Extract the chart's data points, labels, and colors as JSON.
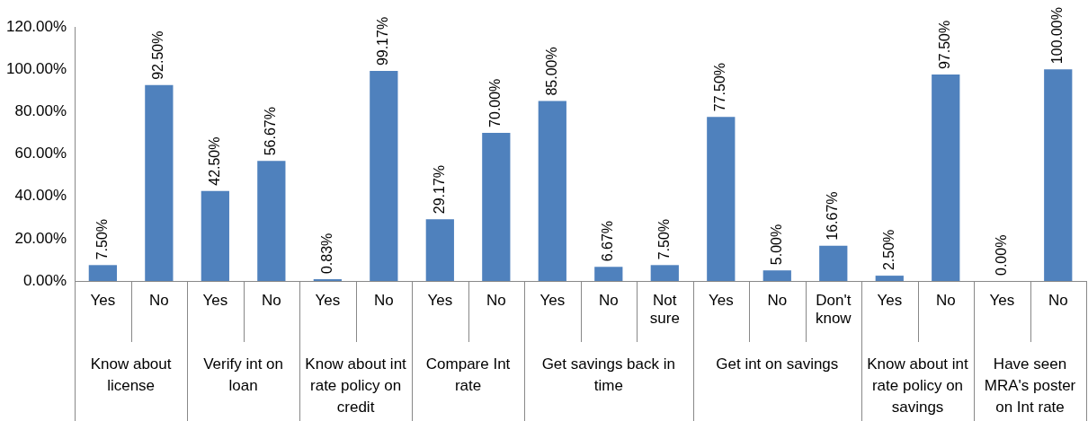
{
  "chart_data": {
    "type": "bar",
    "categories": [
      "Yes",
      "No",
      "Yes",
      "No",
      "Yes",
      "No",
      "Yes",
      "No",
      "Yes",
      "No",
      "Not sure",
      "Yes",
      "No",
      "Don't know",
      "Yes",
      "No",
      "Yes",
      "No"
    ],
    "values": [
      7.5,
      92.5,
      42.5,
      56.67,
      0.83,
      99.17,
      29.17,
      70,
      85,
      6.67,
      7.5,
      77.5,
      5,
      16.67,
      2.5,
      97.5,
      0,
      100
    ],
    "value_labels": [
      "7.50%",
      "92.50%",
      "42.50%",
      "56.67%",
      "0.83%",
      "99.17%",
      "29.17%",
      "70.00%",
      "85.00%",
      "6.67%",
      "7.50%",
      "77.50%",
      "5.00%",
      "16.67%",
      "2.50%",
      "97.50%",
      "0.00%",
      "100.00%"
    ],
    "color": "#4f81bd",
    "ylim": [
      0,
      120
    ],
    "yticks": [
      {
        "value": 0,
        "label": "0.00%"
      },
      {
        "value": 20,
        "label": "20.00%"
      },
      {
        "value": 40,
        "label": "40.00%"
      },
      {
        "value": 60,
        "label": "60.00%"
      },
      {
        "value": 80,
        "label": "80.00%"
      },
      {
        "value": 100,
        "label": "100.00%"
      },
      {
        "value": 120,
        "label": "120.00%"
      }
    ],
    "grid": false,
    "legend": false,
    "annotations": [
      "Know about license",
      "Verify int on loan",
      "Know about int rate policy on credit",
      "Compare Int rate",
      "Get savings back in time",
      "Get int on savings",
      "Know about int rate policy on savings",
      "Have seen MRA's poster on Int rate"
    ]
  }
}
